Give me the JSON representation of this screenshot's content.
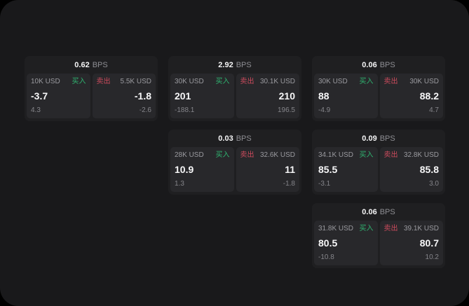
{
  "labels": {
    "buy": "买入",
    "sell": "卖出",
    "unit": "BPS"
  },
  "colors": {
    "page_background": "#000000",
    "panel_background": "#19191b",
    "card_background": "#1f1f21",
    "tile_background": "#28282b",
    "buy_accent": "#2fb470",
    "sell_accent": "#cd4b5d",
    "text_primary": "#f5f5f6",
    "text_secondary": "#8e8e93"
  },
  "cards": [
    {
      "bps": "0.62",
      "buy": {
        "amount": "10K USD",
        "value": "-3.7",
        "change": "4.3"
      },
      "sell": {
        "amount": "5.5K USD",
        "value": "-1.8",
        "change": "-2.6"
      }
    },
    {
      "bps": "2.92",
      "buy": {
        "amount": "30K USD",
        "value": "201",
        "change": "-188.1"
      },
      "sell": {
        "amount": "30.1K USD",
        "value": "210",
        "change": "196.5"
      }
    },
    {
      "bps": "0.06",
      "buy": {
        "amount": "30K USD",
        "value": "88",
        "change": "-4.9"
      },
      "sell": {
        "amount": "30K USD",
        "value": "88.2",
        "change": "4.7"
      }
    },
    {
      "bps": "0.03",
      "buy": {
        "amount": "28K USD",
        "value": "10.9",
        "change": "1.3"
      },
      "sell": {
        "amount": "32.6K USD",
        "value": "11",
        "change": "-1.8"
      }
    },
    {
      "bps": "0.09",
      "buy": {
        "amount": "34.1K USD",
        "value": "85.5",
        "change": "-3.1"
      },
      "sell": {
        "amount": "32.8K USD",
        "value": "85.8",
        "change": "3.0"
      }
    },
    {
      "bps": "0.06",
      "buy": {
        "amount": "31.8K USD",
        "value": "80.5",
        "change": "-10.8"
      },
      "sell": {
        "amount": "39.1K USD",
        "value": "80.7",
        "change": "10.2"
      }
    }
  ]
}
